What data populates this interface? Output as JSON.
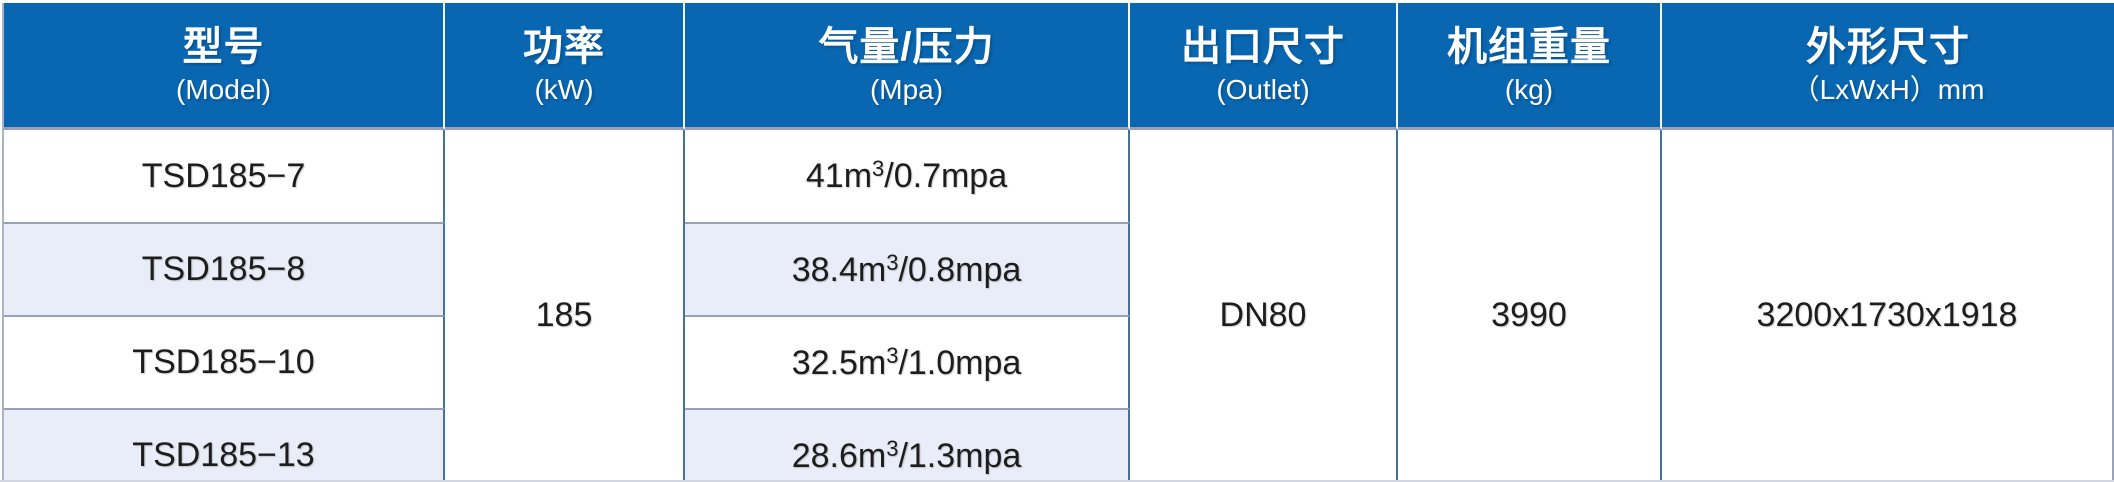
{
  "colors": {
    "header_bg": "#0966b1",
    "header_text": "#ffffff",
    "header_divider": "#f4f7fa",
    "row_bg": "#ffffff",
    "stripe_bg": "#e8edf8",
    "data_text": "#1d1d1d",
    "row_border": "#99a0bb",
    "column_divider": "#45719c",
    "outer_edge": "#9aa2b8"
  },
  "table": {
    "columns": [
      {
        "key": "model",
        "label_cn": "型号",
        "label_en": "(Model)"
      },
      {
        "key": "power",
        "label_cn": "功率",
        "label_en": "(kW)"
      },
      {
        "key": "capacity_pressure",
        "label_cn": "气量/压力",
        "label_en": "(Mpa)"
      },
      {
        "key": "outlet",
        "label_cn": "出口尺寸",
        "label_en": "(Outlet)"
      },
      {
        "key": "weight",
        "label_cn": "机组重量",
        "label_en": "(kg)"
      },
      {
        "key": "dimensions",
        "label_cn": "外形尺寸",
        "label_en": "（LxWxH）mm"
      }
    ],
    "rows": [
      {
        "model": "TSD185−7",
        "capacity": {
          "base": "41m",
          "sup": "3",
          "rest": "/0.7mpa"
        }
      },
      {
        "model": "TSD185−8",
        "capacity": {
          "base": "38.4m",
          "sup": "3",
          "rest": "/0.8mpa"
        }
      },
      {
        "model": "TSD185−10",
        "capacity": {
          "base": "32.5m",
          "sup": "3",
          "rest": "/1.0mpa"
        }
      },
      {
        "model": "TSD185−13",
        "capacity": {
          "base": "28.6m",
          "sup": "3",
          "rest": "/1.3mpa"
        }
      }
    ],
    "merged_values": {
      "power": "185",
      "outlet": "DN80",
      "weight": "3990",
      "dimensions": "3200x1730x1918"
    }
  },
  "chart_data": {
    "type": "table",
    "title": "",
    "column_headers_cn": [
      "型号",
      "功率",
      "气量/压力",
      "出口尺寸",
      "机组重量",
      "外形尺寸"
    ],
    "column_headers_en": [
      "(Model)",
      "(kW)",
      "(Mpa)",
      "(Outlet)",
      "(kg)",
      "（LxWxH）mm"
    ],
    "rows": [
      [
        "TSD185−7",
        "185",
        "41m³/0.7mpa",
        "DN80",
        "3990",
        "3200x1730x1918"
      ],
      [
        "TSD185−8",
        "185",
        "38.4m³/0.8mpa",
        "DN80",
        "3990",
        "3200x1730x1918"
      ],
      [
        "TSD185−10",
        "185",
        "32.5m³/1.0mpa",
        "DN80",
        "3990",
        "3200x1730x1918"
      ],
      [
        "TSD185−13",
        "185",
        "28.6m³/1.3mpa",
        "DN80",
        "3990",
        "3200x1730x1918"
      ]
    ],
    "merged_cells": {
      "功率": "185",
      "出口尺寸": "DN80",
      "机组重量": "3990",
      "外形尺寸": "3200x1730x1918"
    },
    "layout_hints": {
      "striped_columns": [
        "型号",
        "气量/压力"
      ],
      "stripe_pattern": [
        "white",
        "light-blue",
        "white",
        "light-blue"
      ],
      "header_style": "blue background, white bold text",
      "last_row_clipped": true
    }
  }
}
